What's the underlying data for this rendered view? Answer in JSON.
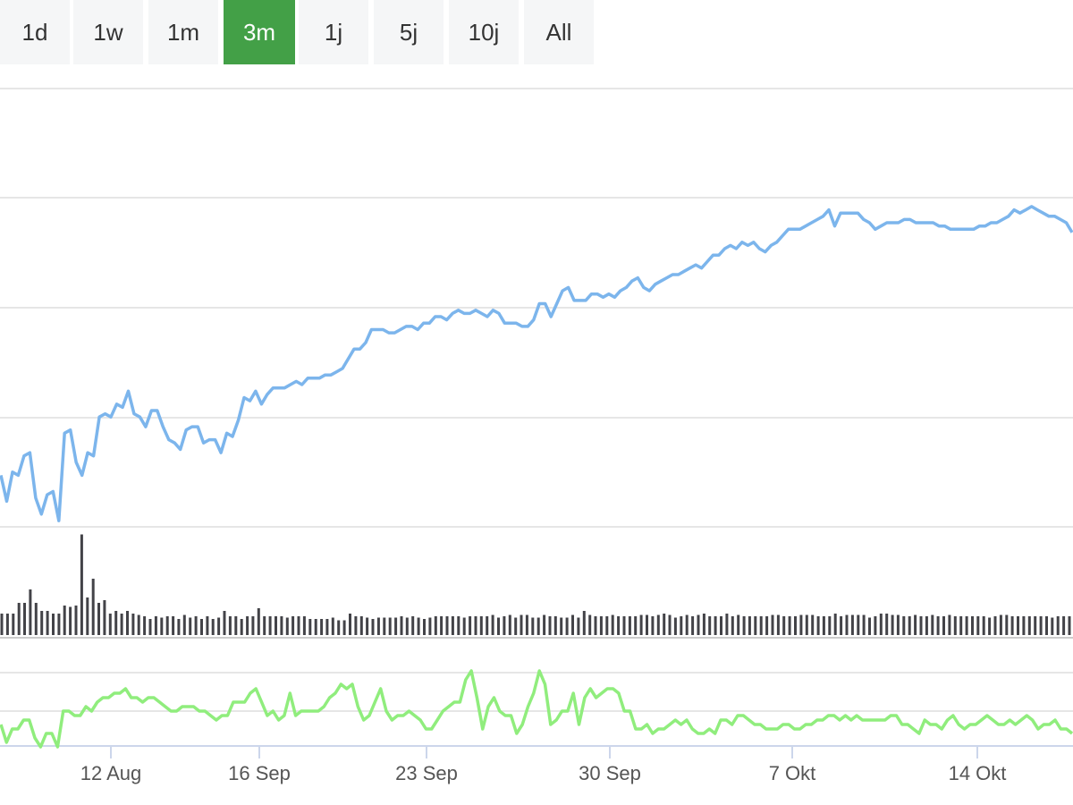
{
  "range_selector": {
    "buttons": [
      {
        "label": "1d"
      },
      {
        "label": "1w"
      },
      {
        "label": "1m"
      },
      {
        "label": "3m"
      },
      {
        "label": "1j"
      },
      {
        "label": "5j"
      },
      {
        "label": "10j"
      },
      {
        "label": "All"
      }
    ],
    "active_index": 3,
    "active_color": "#43a047"
  },
  "chart_data": {
    "type": "line",
    "title": "",
    "grid": true,
    "x_tick_labels": [
      "12 Aug",
      "16 Sep",
      "23 Sep",
      "30 Sep",
      "7 Okt",
      "14 Okt"
    ],
    "series": [
      {
        "color": "#7cb5ec",
        "values": [
          30,
          22,
          31,
          30,
          36,
          37,
          23,
          18,
          24,
          25,
          16,
          43,
          44,
          34,
          30,
          37,
          36,
          48,
          49,
          48,
          52,
          51,
          56,
          49,
          48,
          45,
          50,
          50,
          45,
          41,
          40,
          38,
          44,
          45,
          45,
          40,
          41,
          41,
          37,
          43,
          42,
          47,
          54,
          53,
          56,
          52,
          55,
          57,
          57,
          57,
          58,
          59,
          58,
          60,
          60,
          60,
          61,
          61,
          62,
          63,
          66,
          69,
          69,
          71,
          75,
          75,
          75,
          74,
          74,
          75,
          76,
          76,
          75,
          77,
          77,
          79,
          79,
          78,
          80,
          81,
          80,
          80,
          81,
          80,
          79,
          81,
          80,
          77,
          77,
          77,
          76,
          76,
          78,
          83,
          83,
          79,
          83,
          87,
          88,
          84,
          84,
          84,
          86,
          86,
          85,
          86,
          85,
          87,
          88,
          90,
          91,
          88,
          87,
          89,
          90,
          91,
          92,
          92,
          93,
          94,
          95,
          94,
          96,
          98,
          98,
          100,
          101,
          100,
          102,
          101,
          102,
          100,
          99,
          101,
          102,
          104,
          106,
          106,
          106,
          107,
          108,
          109,
          110,
          112,
          107,
          111,
          111,
          111,
          111,
          109,
          108,
          106,
          107,
          108,
          108,
          108,
          109,
          109,
          108,
          108,
          108,
          108,
          107,
          107,
          106,
          106,
          106,
          106,
          106,
          107,
          107,
          108,
          108,
          109,
          110,
          112,
          111,
          112,
          113,
          112,
          111,
          110,
          110,
          109,
          108,
          105
        ]
      }
    ],
    "volume": [
      16,
      16,
      16,
      24,
      24,
      34,
      24,
      18,
      18,
      16,
      16,
      22,
      21,
      22,
      75,
      28,
      42,
      24,
      26,
      16,
      18,
      16,
      18,
      16,
      15,
      14,
      12,
      14,
      13,
      14,
      14,
      12,
      15,
      13,
      14,
      12,
      14,
      12,
      13,
      18,
      14,
      14,
      12,
      14,
      14,
      20,
      14,
      14,
      14,
      14,
      13,
      14,
      14,
      14,
      12,
      12,
      12,
      12,
      13,
      11,
      11,
      16,
      14,
      14,
      13,
      12,
      13,
      13,
      13,
      13,
      14,
      13,
      14,
      13,
      12,
      13,
      14,
      14,
      14,
      14,
      14,
      13,
      14,
      14,
      14,
      14,
      15,
      13,
      14,
      15,
      13,
      15,
      15,
      13,
      13,
      15,
      14,
      14,
      13,
      13,
      15,
      13,
      18,
      15,
      14,
      14,
      14,
      15,
      14,
      14,
      14,
      14,
      15,
      15,
      14,
      15,
      16,
      15,
      13,
      14,
      15,
      14,
      15,
      16,
      14,
      14,
      14,
      16,
      14,
      15,
      14,
      14,
      14,
      14,
      14,
      15,
      15,
      14,
      14,
      14,
      15,
      15,
      15,
      14,
      14,
      14,
      16,
      14,
      15,
      15,
      15,
      15,
      13,
      14,
      16,
      16,
      15,
      15,
      14,
      14,
      15,
      14,
      14,
      15,
      14,
      14,
      15,
      14,
      14,
      14,
      14,
      14,
      14,
      13,
      14,
      15,
      15,
      14,
      14,
      14,
      14,
      14,
      14,
      14,
      13,
      14,
      14,
      14
    ],
    "volume_color": "#434348",
    "oscillator": {
      "color": "#90ed7d",
      "values": [
        -4,
        -8,
        -5,
        -5,
        -3,
        -3,
        -7,
        -9,
        -6,
        -6,
        -9,
        -1,
        -1,
        -2,
        -2,
        0,
        -1,
        1,
        2,
        2,
        3,
        3,
        4,
        2,
        2,
        1,
        2,
        2,
        1,
        0,
        -1,
        -1,
        0,
        0,
        0,
        -1,
        -1,
        -2,
        -3,
        -2,
        -2,
        1,
        1,
        1,
        3,
        4,
        1,
        -2,
        -1,
        -3,
        -2,
        3,
        -2,
        -1,
        -1,
        -1,
        -1,
        0,
        2,
        3,
        5,
        4,
        5,
        0,
        -3,
        -2,
        1,
        4,
        -1,
        -3,
        -2,
        -2,
        -1,
        -2,
        -3,
        -5,
        -5,
        -3,
        -1,
        0,
        1,
        1,
        6,
        8,
        2,
        -5,
        0,
        2,
        -1,
        -2,
        -2,
        -6,
        -4,
        0,
        3,
        8,
        5,
        -4,
        -3,
        -1,
        -1,
        3,
        -4,
        2,
        4,
        2,
        3,
        4,
        4,
        3,
        -1,
        -1,
        -5,
        -5,
        -4,
        -6,
        -5,
        -5,
        -4,
        -3,
        -4,
        -3,
        -5,
        -6,
        -6,
        -5,
        -6,
        -3,
        -3,
        -4,
        -2,
        -2,
        -3,
        -4,
        -4,
        -5,
        -5,
        -5,
        -4,
        -4,
        -5,
        -5,
        -4,
        -4,
        -3,
        -3,
        -2,
        -2,
        -3,
        -2,
        -3,
        -2,
        -3,
        -3,
        -3,
        -3,
        -3,
        -2,
        -2,
        -4,
        -4,
        -5,
        -6,
        -3,
        -4,
        -4,
        -5,
        -3,
        -2,
        -4,
        -5,
        -4,
        -4,
        -3,
        -2,
        -3,
        -4,
        -4,
        -3,
        -4,
        -3,
        -2,
        -3,
        -5,
        -4,
        -4,
        -3,
        -5,
        -5,
        -6
      ]
    }
  }
}
